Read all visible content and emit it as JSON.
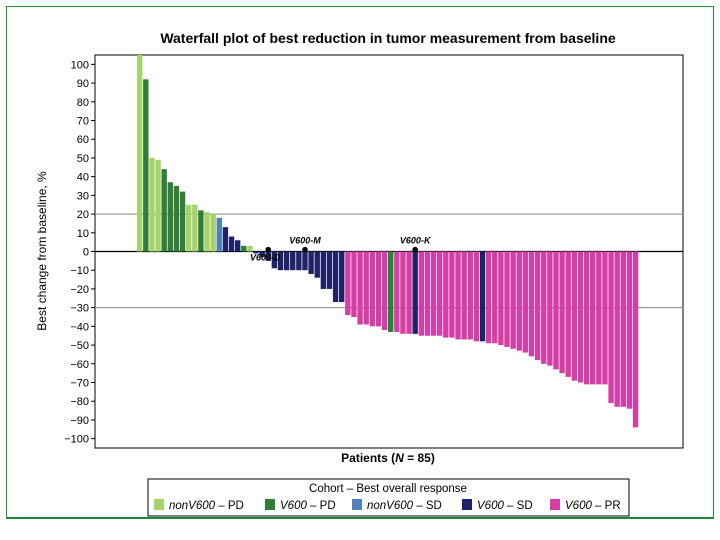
{
  "chart_data": {
    "type": "bar",
    "title": "Waterfall plot of best reduction in tumor measurement from baseline",
    "xlabel": "Patients (N = 85)",
    "ylabel": "Best change from baseline, %",
    "ylim": [
      -105,
      105
    ],
    "yticks": [
      100,
      90,
      80,
      70,
      60,
      50,
      40,
      30,
      20,
      10,
      0,
      -10,
      -20,
      -30,
      -40,
      -50,
      -60,
      -70,
      -80,
      -90,
      -100
    ],
    "reference_lines": [
      20,
      -30
    ],
    "legend_title": "Cohort – Best overall response",
    "legend_position": "bottom",
    "series": [
      {
        "key": "nonPD",
        "cohort": "nonV600",
        "response": "PD",
        "color": "#a7d36b"
      },
      {
        "key": "vPD",
        "cohort": "V600",
        "response": "PD",
        "color": "#2f7f36"
      },
      {
        "key": "nonSD",
        "cohort": "nonV600",
        "response": "SD",
        "color": "#4f7fbf"
      },
      {
        "key": "vSD",
        "cohort": "V600",
        "response": "SD",
        "color": "#1f2266"
      },
      {
        "key": "vPR",
        "cohort": "V600",
        "response": "PR",
        "color": "#d43fa5"
      }
    ],
    "bars": [
      {
        "v": 105,
        "s": "nonPD"
      },
      {
        "v": 92,
        "s": "vPD"
      },
      {
        "v": 50,
        "s": "nonPD"
      },
      {
        "v": 49,
        "s": "nonPD"
      },
      {
        "v": 44,
        "s": "vPD"
      },
      {
        "v": 37,
        "s": "vPD"
      },
      {
        "v": 35,
        "s": "vPD"
      },
      {
        "v": 32,
        "s": "vPD"
      },
      {
        "v": 25,
        "s": "nonPD"
      },
      {
        "v": 25,
        "s": "nonPD"
      },
      {
        "v": 22,
        "s": "vPD"
      },
      {
        "v": 21,
        "s": "nonPD"
      },
      {
        "v": 20,
        "s": "nonPD"
      },
      {
        "v": 18,
        "s": "nonSD"
      },
      {
        "v": 13,
        "s": "vSD"
      },
      {
        "v": 8,
        "s": "vSD"
      },
      {
        "v": 6,
        "s": "vSD"
      },
      {
        "v": 3,
        "s": "vPD"
      },
      {
        "v": 3,
        "s": "nonPD"
      },
      {
        "v": -1,
        "s": "vSD"
      },
      {
        "v": -3,
        "s": "vSD"
      },
      {
        "v": -5,
        "s": "vSD"
      },
      {
        "v": -9,
        "s": "vSD"
      },
      {
        "v": -10,
        "s": "vSD"
      },
      {
        "v": -10,
        "s": "vSD"
      },
      {
        "v": -10,
        "s": "vSD"
      },
      {
        "v": -10,
        "s": "vSD"
      },
      {
        "v": -10,
        "s": "vSD"
      },
      {
        "v": -12,
        "s": "vSD"
      },
      {
        "v": -14,
        "s": "vSD"
      },
      {
        "v": -20,
        "s": "vSD"
      },
      {
        "v": -20,
        "s": "vSD"
      },
      {
        "v": -27,
        "s": "vSD"
      },
      {
        "v": -27,
        "s": "vSD"
      },
      {
        "v": -34,
        "s": "vPR"
      },
      {
        "v": -35,
        "s": "vPR"
      },
      {
        "v": -39,
        "s": "vPR"
      },
      {
        "v": -39,
        "s": "vPR"
      },
      {
        "v": -40,
        "s": "vPR"
      },
      {
        "v": -40,
        "s": "vPR"
      },
      {
        "v": -42,
        "s": "vPR"
      },
      {
        "v": -43,
        "s": "vPD"
      },
      {
        "v": -43,
        "s": "vPR"
      },
      {
        "v": -44,
        "s": "vPR"
      },
      {
        "v": -44,
        "s": "vPR"
      },
      {
        "v": -44,
        "s": "vSD"
      },
      {
        "v": -45,
        "s": "vPR"
      },
      {
        "v": -45,
        "s": "vPR"
      },
      {
        "v": -45,
        "s": "vPR"
      },
      {
        "v": -45,
        "s": "vPR"
      },
      {
        "v": -46,
        "s": "vPR"
      },
      {
        "v": -46,
        "s": "vPR"
      },
      {
        "v": -47,
        "s": "vPR"
      },
      {
        "v": -47,
        "s": "vPR"
      },
      {
        "v": -47,
        "s": "vPR"
      },
      {
        "v": -48,
        "s": "vPR"
      },
      {
        "v": -48,
        "s": "vSD"
      },
      {
        "v": -49,
        "s": "vPR"
      },
      {
        "v": -49,
        "s": "vPR"
      },
      {
        "v": -50,
        "s": "vPR"
      },
      {
        "v": -51,
        "s": "vPR"
      },
      {
        "v": -52,
        "s": "vPR"
      },
      {
        "v": -53,
        "s": "vPR"
      },
      {
        "v": -54,
        "s": "vPR"
      },
      {
        "v": -56,
        "s": "vPR"
      },
      {
        "v": -58,
        "s": "vPR"
      },
      {
        "v": -60,
        "s": "vPR"
      },
      {
        "v": -61,
        "s": "vPR"
      },
      {
        "v": -63,
        "s": "vPR"
      },
      {
        "v": -65,
        "s": "vPR"
      },
      {
        "v": -67,
        "s": "vPR"
      },
      {
        "v": -69,
        "s": "vPR"
      },
      {
        "v": -70,
        "s": "vPR"
      },
      {
        "v": -71,
        "s": "vPR"
      },
      {
        "v": -71,
        "s": "vPR"
      },
      {
        "v": -71,
        "s": "vPR"
      },
      {
        "v": -71,
        "s": "vPR"
      },
      {
        "v": -81,
        "s": "vPR"
      },
      {
        "v": -83,
        "s": "vPR"
      },
      {
        "v": -83,
        "s": "vPR"
      },
      {
        "v": -84,
        "s": "vPR"
      },
      {
        "v": -94,
        "s": "vPR"
      }
    ],
    "annotations": [
      {
        "label": "V600-D",
        "bar": 21,
        "y": 1
      },
      {
        "label": "V600-M",
        "bar": 27,
        "y": 1
      },
      {
        "label": "V600-K",
        "bar": 45,
        "y": 1
      }
    ]
  }
}
